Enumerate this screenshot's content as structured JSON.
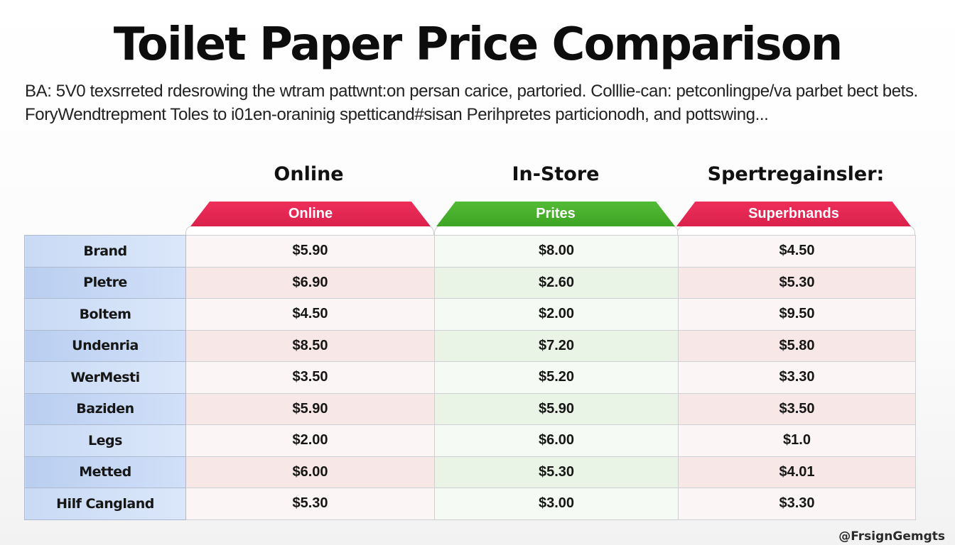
{
  "title": "Toilet Paper Price Comparison",
  "description": "BA: 5V0 texsrreted rdesrowing the wtram pattwnt:on persan carice, partoried. Colllie-can: petconlingpe/va parbet bect bets. ForyWendtrepment Toles to i01en-oraninig spetticand#sisan Perihpretes particionodh, and pottswing...",
  "group_labels": [
    "Online",
    "In-Store",
    "Spertregainsler:"
  ],
  "tabs": [
    {
      "label": "Online",
      "color": "#e6284f"
    },
    {
      "label": "Prites",
      "color": "#47ad2c"
    },
    {
      "label": "Superbnands",
      "color": "#e6284f"
    }
  ],
  "chart_data": {
    "type": "table",
    "title": "Toilet Paper Price Comparison",
    "columns": [
      "Online",
      "Prites",
      "Superbnands"
    ],
    "rows": [
      {
        "label": "Brand",
        "values": [
          "$5.90",
          "$8.00",
          "$4.50"
        ]
      },
      {
        "label": "Pletre",
        "values": [
          "$6.90",
          "$2.60",
          "$5.30"
        ]
      },
      {
        "label": "Boltem",
        "values": [
          "$4.50",
          "$2.00",
          "$9.50"
        ]
      },
      {
        "label": "Undenria",
        "values": [
          "$8.50",
          "$7.20",
          "$5.80"
        ]
      },
      {
        "label": "WerMesti",
        "values": [
          "$3.50",
          "$5.20",
          "$3.30"
        ]
      },
      {
        "label": "Baziden",
        "values": [
          "$5.90",
          "$5.90",
          "$3.50"
        ]
      },
      {
        "label": "Legs",
        "values": [
          "$2.00",
          "$6.00",
          "$1.0"
        ]
      },
      {
        "label": "Metted",
        "values": [
          "$6.00",
          "$5.30",
          "$4.01"
        ]
      },
      {
        "label": "Hilf Cangland",
        "values": [
          "$5.30",
          "$3.00",
          "$3.30"
        ]
      }
    ]
  },
  "watermark": "@FrsignGemgts"
}
